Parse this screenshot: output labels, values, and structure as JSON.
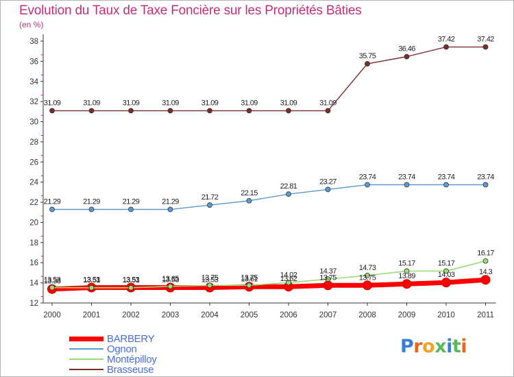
{
  "header": {
    "title": "Evolution du Taux de Taxe Foncière sur les Propriétés Bâties",
    "unit": "(en %)"
  },
  "logo": {
    "text": "Proxiti",
    "letters": [
      "P",
      "r",
      "o",
      "x",
      "i",
      "t",
      "i"
    ],
    "colors": [
      "#3a7fd5",
      "#e9661e",
      "#f0a32a",
      "#5cb85c",
      "#3a7fd5",
      "#5cb85c",
      "#e9661e"
    ]
  },
  "chart_data": {
    "type": "line",
    "title": "Evolution du Taux de Taxe Foncière sur les Propriétés Bâties",
    "ylabel": "(en %)",
    "xlabel": "",
    "ylim": [
      12,
      38
    ],
    "yticks": [
      12,
      14,
      16,
      18,
      20,
      22,
      24,
      26,
      28,
      30,
      32,
      34,
      36,
      38
    ],
    "categories": [
      "2000",
      "2001",
      "2002",
      "2003",
      "2004",
      "2005",
      "2006",
      "2007",
      "2008",
      "2009",
      "2010",
      "2011"
    ],
    "grid": false,
    "legend_position": "bottom-left",
    "series": [
      {
        "name": "Brasseuse",
        "color": "#7a2b2b",
        "width": 1.4,
        "values": [
          31.09,
          31.09,
          31.09,
          31.09,
          31.09,
          31.09,
          31.09,
          31.09,
          35.75,
          36.46,
          37.42,
          37.42
        ],
        "labels": [
          "31.09",
          "31.09",
          "31.09",
          "31.09",
          "31.09",
          "31.09",
          "31.09",
          "31.09",
          "35.75",
          "36.46",
          "37.42",
          "37.42"
        ]
      },
      {
        "name": "Ognon",
        "color": "#5b9bd1",
        "width": 1.4,
        "values": [
          21.29,
          21.29,
          21.29,
          21.29,
          21.72,
          22.15,
          22.81,
          23.27,
          23.74,
          23.74,
          23.74,
          23.74
        ],
        "labels": [
          "21.29",
          "21.29",
          "21.29",
          "21.29",
          "21.72",
          "22.15",
          "22.81",
          "23.27",
          "23.74",
          "23.74",
          "23.74",
          "23.74"
        ]
      },
      {
        "name": "BARBERY",
        "color": "#ff0000",
        "width": 7,
        "values": [
          13.38,
          13.53,
          13.53,
          13.53,
          13.53,
          13.61,
          13.62,
          13.75,
          13.75,
          13.89,
          14.03,
          14.3
        ],
        "labels": [
          "13.38",
          "13.53",
          "13.53",
          "13.53",
          "13.53",
          "13.61",
          "13.62",
          "13.75",
          "13.75",
          "13.89",
          "14.03",
          "14.3"
        ]
      },
      {
        "name": "Montépilloy",
        "color": "#99dd77",
        "width": 1.6,
        "values": [
          13.53,
          13.51,
          13.51,
          13.65,
          13.75,
          13.75,
          14.02,
          14.37,
          14.73,
          15.17,
          15.17,
          16.17
        ],
        "labels": [
          "13.53",
          "13.51",
          "13.51",
          "13.65",
          "13.75",
          "13.75",
          "14.02",
          "14.37",
          "14.73",
          "15.17",
          "15.17",
          "16.17"
        ]
      }
    ]
  },
  "legend": {
    "items": [
      {
        "label": "BARBERY",
        "color": "#ff0000"
      },
      {
        "label": "Ognon",
        "color": "#5b9bd1"
      },
      {
        "label": "Montépilloy",
        "color": "#99dd77"
      },
      {
        "label": "Brasseuse",
        "color": "#7a2b2b"
      }
    ]
  }
}
